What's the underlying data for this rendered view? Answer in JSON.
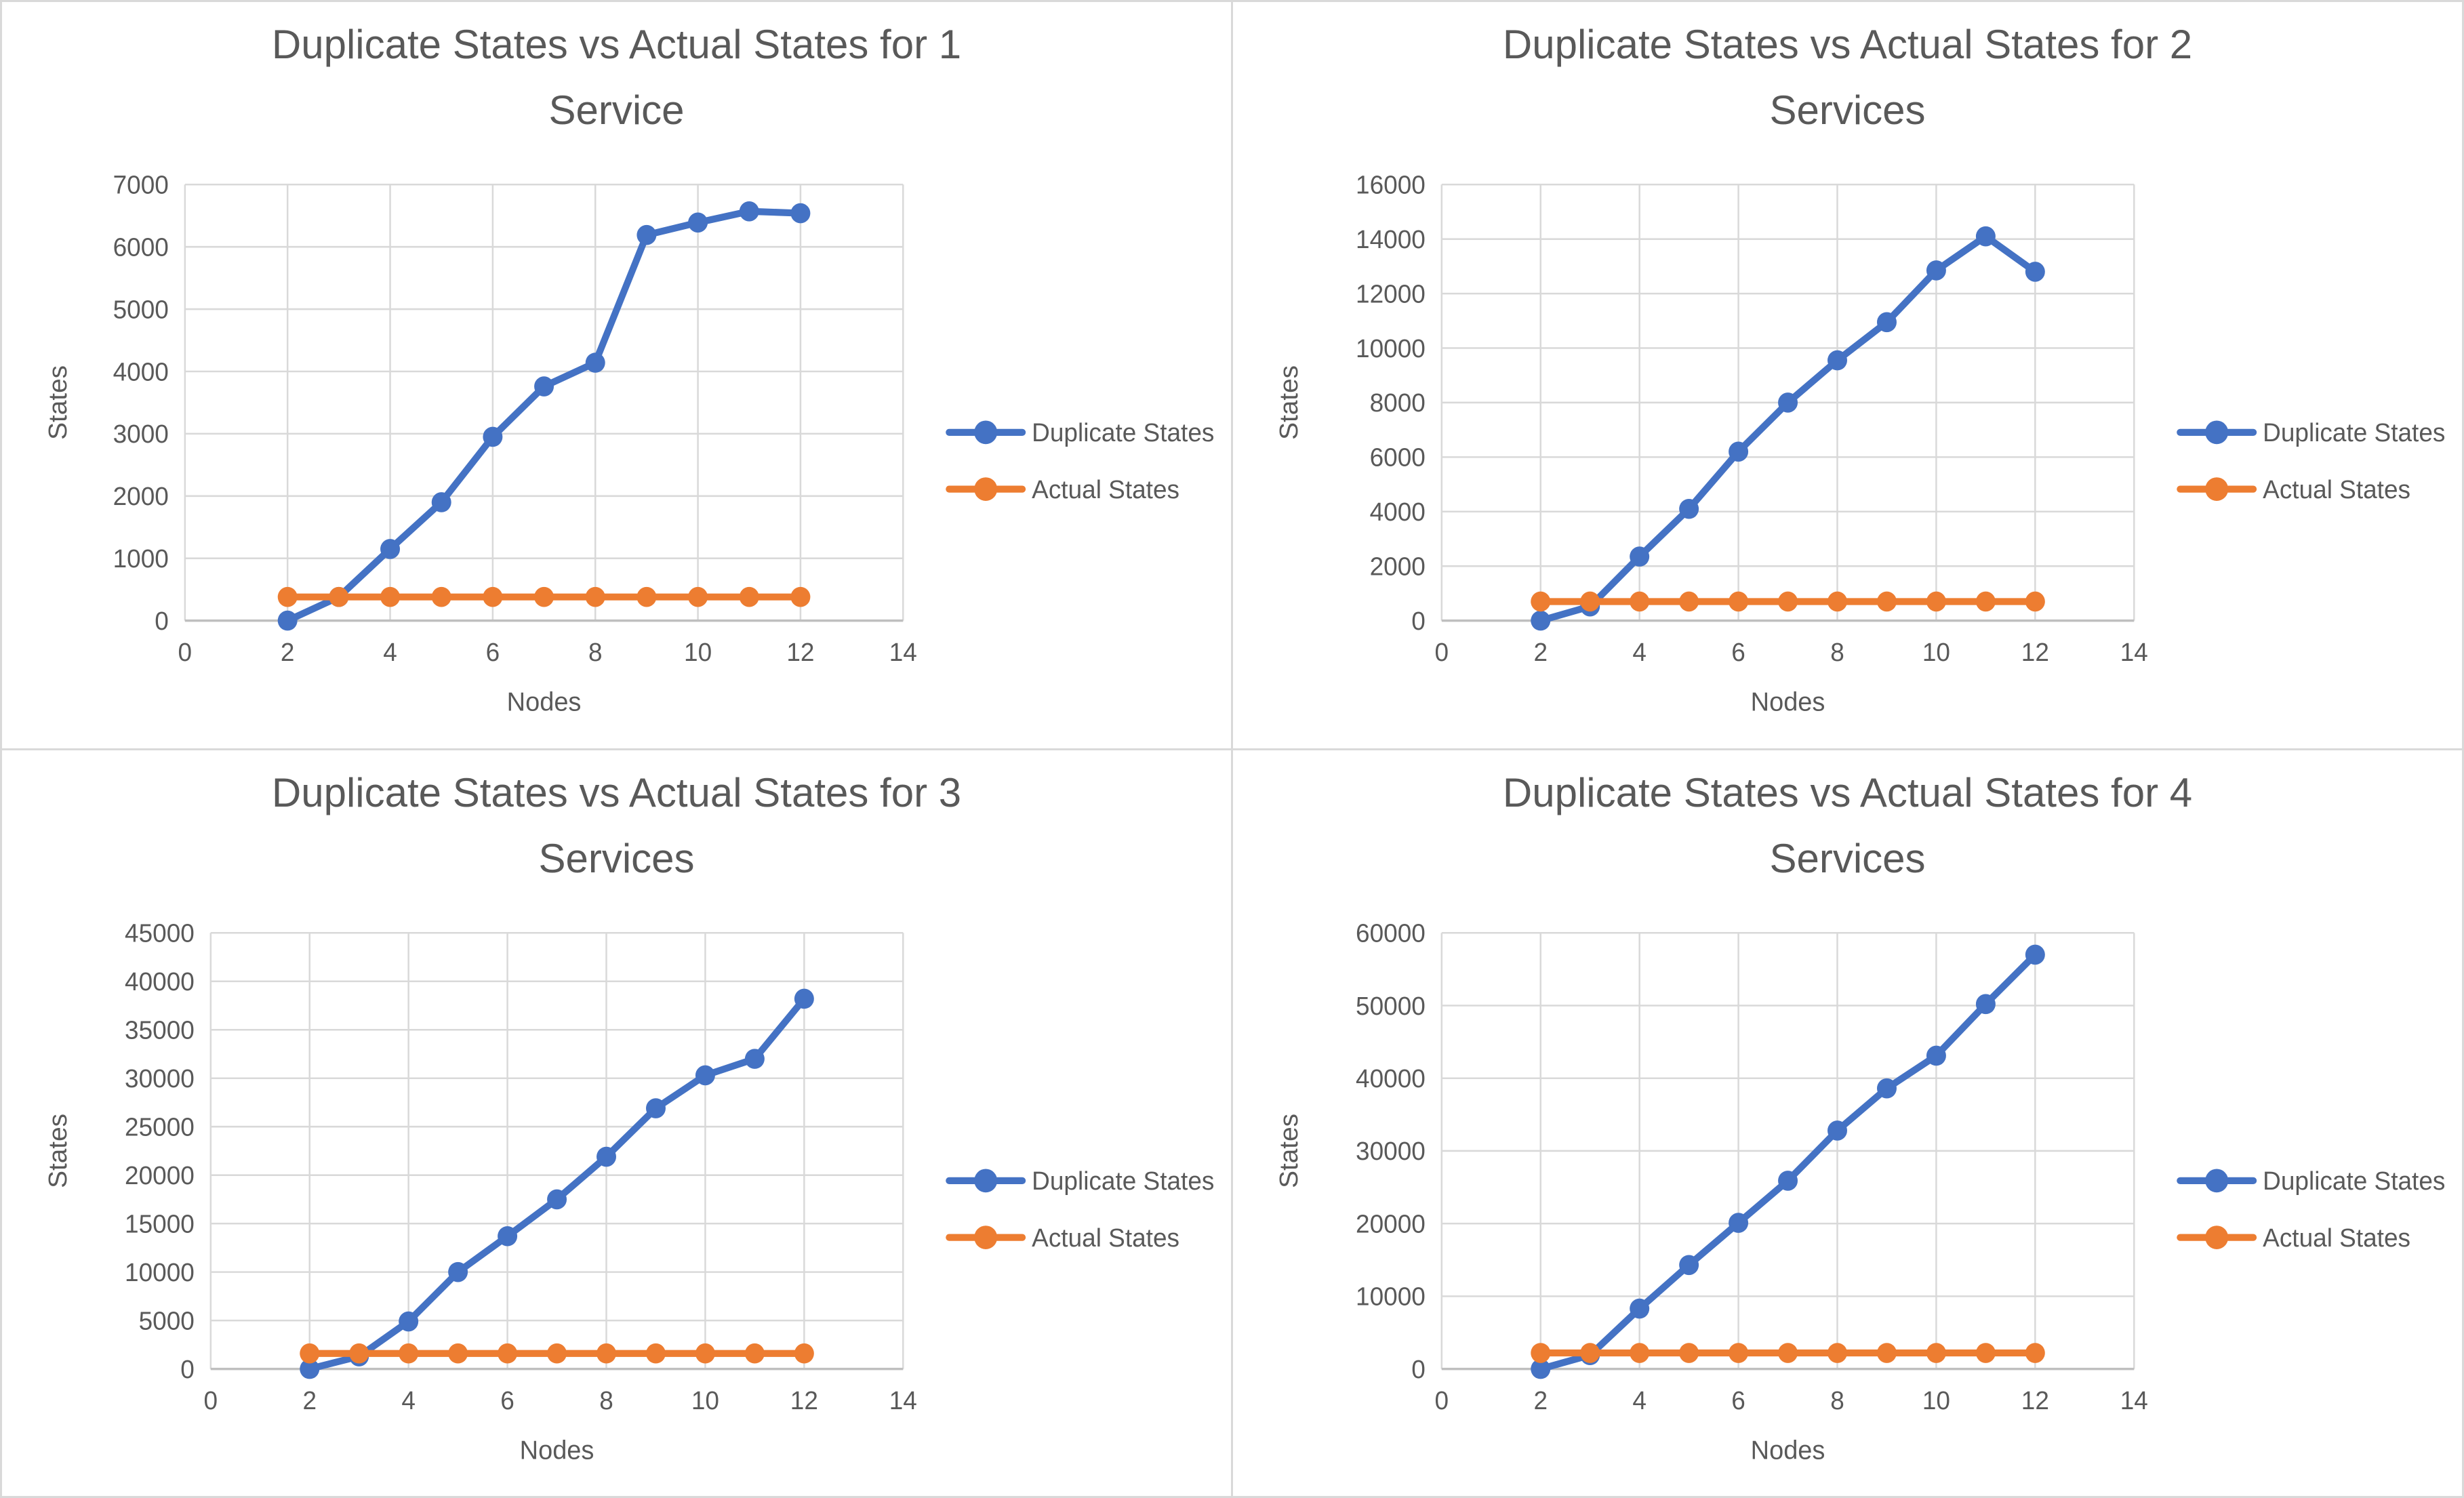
{
  "page": {
    "background": "#ffffff",
    "panel_border_color": "#d9d9d9"
  },
  "colors": {
    "text": "#595959",
    "grid": "#d9d9d9",
    "axis": "#bfbfbf",
    "series_blue": "#4472C4",
    "series_orange": "#ED7D31"
  },
  "chart_data": [
    {
      "type": "line",
      "title": "Duplicate States vs Actual States for 1 Service",
      "title_lines": [
        "Duplicate States vs Actual States for 1",
        "Service"
      ],
      "xlabel": "Nodes",
      "ylabel": "States",
      "xlim": [
        0,
        14
      ],
      "ylim": [
        0,
        7000
      ],
      "xticks": [
        0,
        2,
        4,
        6,
        8,
        10,
        12,
        14
      ],
      "yticks": [
        0,
        1000,
        2000,
        3000,
        4000,
        5000,
        6000,
        7000
      ],
      "grid": true,
      "legend_position": "right",
      "x": [
        2,
        3,
        4,
        5,
        6,
        7,
        8,
        9,
        10,
        11,
        12
      ],
      "series": [
        {
          "name": "Duplicate States",
          "color": "#4472C4",
          "values": [
            0,
            380,
            1150,
            1900,
            2950,
            3760,
            4140,
            6190,
            6390,
            6570,
            6540
          ]
        },
        {
          "name": "Actual States",
          "color": "#ED7D31",
          "values": [
            380,
            380,
            380,
            380,
            380,
            380,
            380,
            380,
            380,
            380,
            380
          ]
        }
      ]
    },
    {
      "type": "line",
      "title": "Duplicate States vs Actual States for 2 Services",
      "title_lines": [
        "Duplicate States vs Actual States for 2",
        "Services"
      ],
      "xlabel": "Nodes",
      "ylabel": "States",
      "xlim": [
        0,
        14
      ],
      "ylim": [
        0,
        16000
      ],
      "xticks": [
        0,
        2,
        4,
        6,
        8,
        10,
        12,
        14
      ],
      "yticks": [
        0,
        2000,
        4000,
        6000,
        8000,
        10000,
        12000,
        14000,
        16000
      ],
      "grid": true,
      "legend_position": "right",
      "x": [
        2,
        3,
        4,
        5,
        6,
        7,
        8,
        9,
        10,
        11,
        12
      ],
      "series": [
        {
          "name": "Duplicate States",
          "color": "#4472C4",
          "values": [
            0,
            520,
            2350,
            4100,
            6200,
            8000,
            9550,
            10950,
            12850,
            14100,
            12800
          ]
        },
        {
          "name": "Actual States",
          "color": "#ED7D31",
          "values": [
            700,
            700,
            700,
            700,
            700,
            700,
            700,
            700,
            700,
            700,
            700
          ]
        }
      ]
    },
    {
      "type": "line",
      "title": "Duplicate States vs Actual States for 3 Services",
      "title_lines": [
        "Duplicate States vs Actual States for 3",
        "Services"
      ],
      "xlabel": "Nodes",
      "ylabel": "States",
      "xlim": [
        0,
        14
      ],
      "ylim": [
        0,
        45000
      ],
      "xticks": [
        0,
        2,
        4,
        6,
        8,
        10,
        12,
        14
      ],
      "yticks": [
        0,
        5000,
        10000,
        15000,
        20000,
        25000,
        30000,
        35000,
        40000,
        45000
      ],
      "grid": true,
      "legend_position": "right",
      "x": [
        2,
        3,
        4,
        5,
        6,
        7,
        8,
        9,
        10,
        11,
        12
      ],
      "series": [
        {
          "name": "Duplicate States",
          "color": "#4472C4",
          "values": [
            0,
            1300,
            4900,
            10000,
            13700,
            17500,
            21900,
            26900,
            30300,
            32000,
            38200
          ]
        },
        {
          "name": "Actual States",
          "color": "#ED7D31",
          "values": [
            1600,
            1600,
            1600,
            1600,
            1600,
            1600,
            1600,
            1600,
            1600,
            1600,
            1600
          ]
        }
      ]
    },
    {
      "type": "line",
      "title": "Duplicate States vs Actual States for 4 Services",
      "title_lines": [
        "Duplicate States vs Actual States for 4",
        "Services"
      ],
      "xlabel": "Nodes",
      "ylabel": "States",
      "xlim": [
        0,
        14
      ],
      "ylim": [
        0,
        60000
      ],
      "xticks": [
        0,
        2,
        4,
        6,
        8,
        10,
        12,
        14
      ],
      "yticks": [
        0,
        10000,
        20000,
        30000,
        40000,
        50000,
        60000
      ],
      "grid": true,
      "legend_position": "right",
      "x": [
        2,
        3,
        4,
        5,
        6,
        7,
        8,
        9,
        10,
        11,
        12
      ],
      "series": [
        {
          "name": "Duplicate States",
          "color": "#4472C4",
          "values": [
            0,
            1900,
            8300,
            14300,
            20100,
            25900,
            32800,
            38600,
            43100,
            50200,
            57000
          ]
        },
        {
          "name": "Actual States",
          "color": "#ED7D31",
          "values": [
            2200,
            2200,
            2200,
            2200,
            2200,
            2200,
            2200,
            2200,
            2200,
            2200,
            2200
          ]
        }
      ]
    }
  ]
}
